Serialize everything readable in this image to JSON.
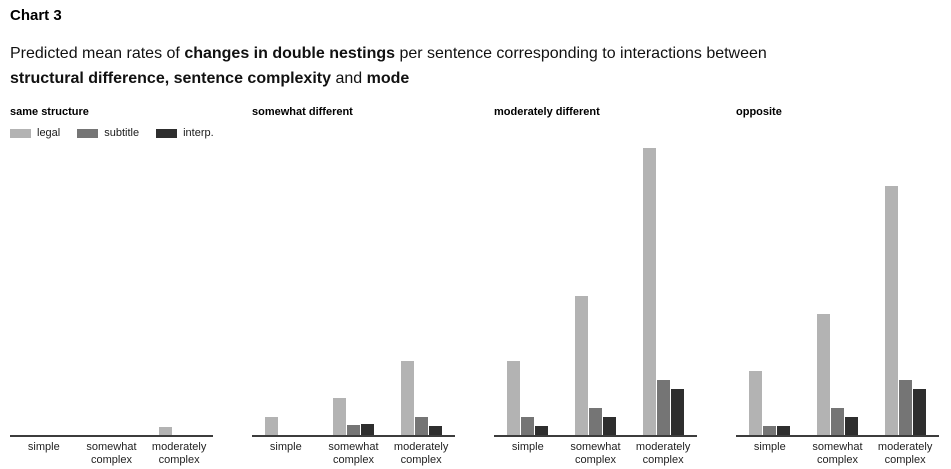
{
  "title": "Chart 3",
  "subtitle_lines": [
    [
      {
        "text": "Predicted mean rates of ",
        "bold": false
      },
      {
        "text": "changes in double nestings",
        "bold": true
      },
      {
        "text": " per sentence corresponding to interactions between",
        "bold": false
      }
    ],
    [
      {
        "text": "structural difference, sentence complexity",
        "bold": true
      },
      {
        "text": " and ",
        "bold": false
      },
      {
        "text": "mode",
        "bold": true
      }
    ]
  ],
  "legend": {
    "items": [
      {
        "label": "legal",
        "color": "#b3b3b3"
      },
      {
        "label": "subtitle",
        "color": "#757575"
      },
      {
        "label": "interp.",
        "color": "#2e2e2e"
      }
    ]
  },
  "colors": {
    "axis": "#3c3c3c",
    "background": "#ffffff"
  },
  "chart_data": [
    {
      "type": "bar",
      "title": "same structure",
      "categories": [
        "simple",
        "somewhat complex",
        "moderately complex"
      ],
      "series": [
        {
          "name": "legal",
          "values": [
            0,
            0,
            8
          ]
        },
        {
          "name": "subtitle",
          "values": [
            0,
            0,
            0
          ]
        },
        {
          "name": "interp.",
          "values": [
            0,
            0,
            0
          ]
        }
      ],
      "xlabel": "",
      "ylabel": "",
      "value_unit": "relative bar height in px (no y-axis scale shown in chart)",
      "ylim": [
        0,
        293
      ],
      "grid": false,
      "legend_position": "top-left (first panel only)"
    },
    {
      "type": "bar",
      "title": "somewhat different",
      "categories": [
        "simple",
        "somewhat complex",
        "moderately complex"
      ],
      "series": [
        {
          "name": "legal",
          "values": [
            18,
            37,
            74
          ]
        },
        {
          "name": "subtitle",
          "values": [
            0,
            10,
            18
          ]
        },
        {
          "name": "interp.",
          "values": [
            0,
            11,
            9
          ]
        }
      ],
      "xlabel": "",
      "ylabel": "",
      "value_unit": "relative bar height in px (no y-axis scale shown in chart)",
      "ylim": [
        0,
        293
      ],
      "grid": false,
      "legend_position": "none"
    },
    {
      "type": "bar",
      "title": "moderately different",
      "categories": [
        "simple",
        "somewhat complex",
        "moderately complex"
      ],
      "series": [
        {
          "name": "legal",
          "values": [
            74,
            139,
            287
          ]
        },
        {
          "name": "subtitle",
          "values": [
            18,
            27,
            55
          ]
        },
        {
          "name": "interp.",
          "values": [
            9,
            18,
            46
          ]
        }
      ],
      "xlabel": "",
      "ylabel": "",
      "value_unit": "relative bar height in px (no y-axis scale shown in chart)",
      "ylim": [
        0,
        293
      ],
      "grid": false,
      "legend_position": "none"
    },
    {
      "type": "bar",
      "title": "opposite",
      "categories": [
        "simple",
        "somewhat complex",
        "moderately complex"
      ],
      "series": [
        {
          "name": "legal",
          "values": [
            64,
            121,
            249
          ]
        },
        {
          "name": "subtitle",
          "values": [
            9,
            27,
            55
          ]
        },
        {
          "name": "interp.",
          "values": [
            9,
            18,
            46
          ]
        }
      ],
      "xlabel": "",
      "ylabel": "",
      "value_unit": "relative bar height in px (no y-axis scale shown in chart)",
      "ylim": [
        0,
        293
      ],
      "grid": false,
      "legend_position": "none"
    }
  ]
}
